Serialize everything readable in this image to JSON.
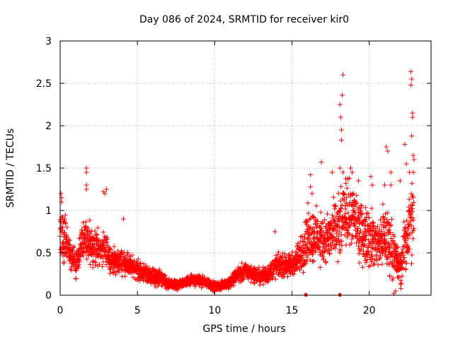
{
  "chart_data": {
    "type": "scatter",
    "title": "Day 086 of 2024, SRMTID for receiver kir0",
    "xlabel": "GPS time / hours",
    "ylabel": "SRMTID / TECUs",
    "xlim": [
      0,
      24
    ],
    "ylim": [
      0,
      3
    ],
    "xticks": [
      0,
      5,
      10,
      15,
      20
    ],
    "xtick_labels": [
      "0",
      "5",
      "10",
      "15",
      "20"
    ],
    "yticks": [
      0,
      0.5,
      1,
      1.5,
      2,
      2.5,
      3
    ],
    "ytick_labels": [
      "0",
      "0.5",
      "1",
      "1.5",
      "2",
      "2.5",
      "3"
    ],
    "grid": true,
    "marker": "+",
    "color": "#ff0000",
    "series": [
      {
        "name": "SRMTID",
        "profile": [
          [
            0.0,
            0.85,
            0.35
          ],
          [
            0.5,
            0.55,
            0.18
          ],
          [
            1.0,
            0.35,
            0.12
          ],
          [
            1.5,
            0.65,
            0.2
          ],
          [
            2.0,
            0.6,
            0.2
          ],
          [
            2.5,
            0.55,
            0.18
          ],
          [
            3.0,
            0.5,
            0.15
          ],
          [
            3.5,
            0.4,
            0.12
          ],
          [
            4.0,
            0.4,
            0.12
          ],
          [
            4.5,
            0.35,
            0.1
          ],
          [
            5.0,
            0.3,
            0.1
          ],
          [
            5.5,
            0.25,
            0.08
          ],
          [
            6.0,
            0.22,
            0.08
          ],
          [
            6.5,
            0.2,
            0.08
          ],
          [
            7.0,
            0.12,
            0.05
          ],
          [
            7.5,
            0.12,
            0.05
          ],
          [
            8.0,
            0.15,
            0.05
          ],
          [
            8.5,
            0.18,
            0.05
          ],
          [
            9.0,
            0.17,
            0.05
          ],
          [
            9.5,
            0.15,
            0.05
          ],
          [
            10.0,
            0.1,
            0.04
          ],
          [
            10.5,
            0.12,
            0.04
          ],
          [
            11.0,
            0.15,
            0.05
          ],
          [
            11.5,
            0.25,
            0.08
          ],
          [
            12.0,
            0.28,
            0.08
          ],
          [
            12.5,
            0.25,
            0.08
          ],
          [
            13.0,
            0.22,
            0.08
          ],
          [
            13.5,
            0.25,
            0.08
          ],
          [
            14.0,
            0.35,
            0.12
          ],
          [
            14.5,
            0.35,
            0.1
          ],
          [
            15.0,
            0.35,
            0.12
          ],
          [
            15.5,
            0.45,
            0.15
          ],
          [
            16.0,
            0.7,
            0.25
          ],
          [
            16.5,
            0.7,
            0.25
          ],
          [
            17.0,
            0.65,
            0.25
          ],
          [
            17.5,
            0.7,
            0.25
          ],
          [
            18.0,
            0.75,
            0.3
          ],
          [
            18.5,
            1.0,
            0.3
          ],
          [
            19.0,
            0.9,
            0.3
          ],
          [
            19.5,
            0.75,
            0.3
          ],
          [
            20.0,
            0.7,
            0.3
          ],
          [
            20.5,
            0.6,
            0.25
          ],
          [
            21.0,
            0.7,
            0.3
          ],
          [
            21.5,
            0.55,
            0.25
          ],
          [
            22.0,
            0.3,
            0.15
          ],
          [
            22.5,
            0.75,
            0.35
          ],
          [
            22.8,
            0.9,
            0.4
          ]
        ],
        "peaks": [
          [
            0.05,
            1.2
          ],
          [
            0.1,
            1.15
          ],
          [
            0.1,
            1.1
          ],
          [
            1.7,
            1.5
          ],
          [
            1.7,
            1.45
          ],
          [
            1.7,
            1.3
          ],
          [
            1.7,
            1.25
          ],
          [
            2.8,
            1.22
          ],
          [
            2.9,
            1.2
          ],
          [
            3.0,
            1.25
          ],
          [
            4.1,
            0.9
          ],
          [
            13.9,
            0.75
          ],
          [
            16.2,
            1.42
          ],
          [
            16.2,
            1.28
          ],
          [
            16.3,
            1.2
          ],
          [
            16.9,
            1.57
          ],
          [
            17.6,
            1.45
          ],
          [
            18.1,
            2.25
          ],
          [
            18.15,
            2.1
          ],
          [
            18.2,
            1.95
          ],
          [
            18.2,
            1.83
          ],
          [
            18.25,
            2.36
          ],
          [
            18.3,
            2.6
          ],
          [
            18.1,
            1.5
          ],
          [
            18.3,
            1.45
          ],
          [
            18.8,
            1.5
          ],
          [
            18.9,
            1.45
          ],
          [
            19.3,
            1.35
          ],
          [
            20.1,
            1.4
          ],
          [
            20.2,
            1.3
          ],
          [
            21.0,
            1.3
          ],
          [
            21.1,
            1.75
          ],
          [
            21.2,
            1.7
          ],
          [
            21.4,
            1.45
          ],
          [
            21.4,
            1.3
          ],
          [
            22.0,
            1.35
          ],
          [
            22.3,
            1.78
          ],
          [
            22.4,
            1.55
          ],
          [
            22.6,
            1.45
          ],
          [
            22.7,
            2.64
          ],
          [
            22.75,
            2.55
          ],
          [
            22.7,
            2.48
          ],
          [
            22.8,
            2.15
          ],
          [
            22.8,
            2.1
          ],
          [
            22.75,
            1.88
          ],
          [
            22.85,
            1.65
          ],
          [
            22.9,
            1.6
          ],
          [
            22.85,
            1.45
          ],
          [
            21.6,
            0.02
          ],
          [
            21.7,
            0.05
          ],
          [
            22.05,
            0.08
          ]
        ]
      }
    ],
    "baseline_markers": [
      15.9,
      18.1
    ]
  }
}
